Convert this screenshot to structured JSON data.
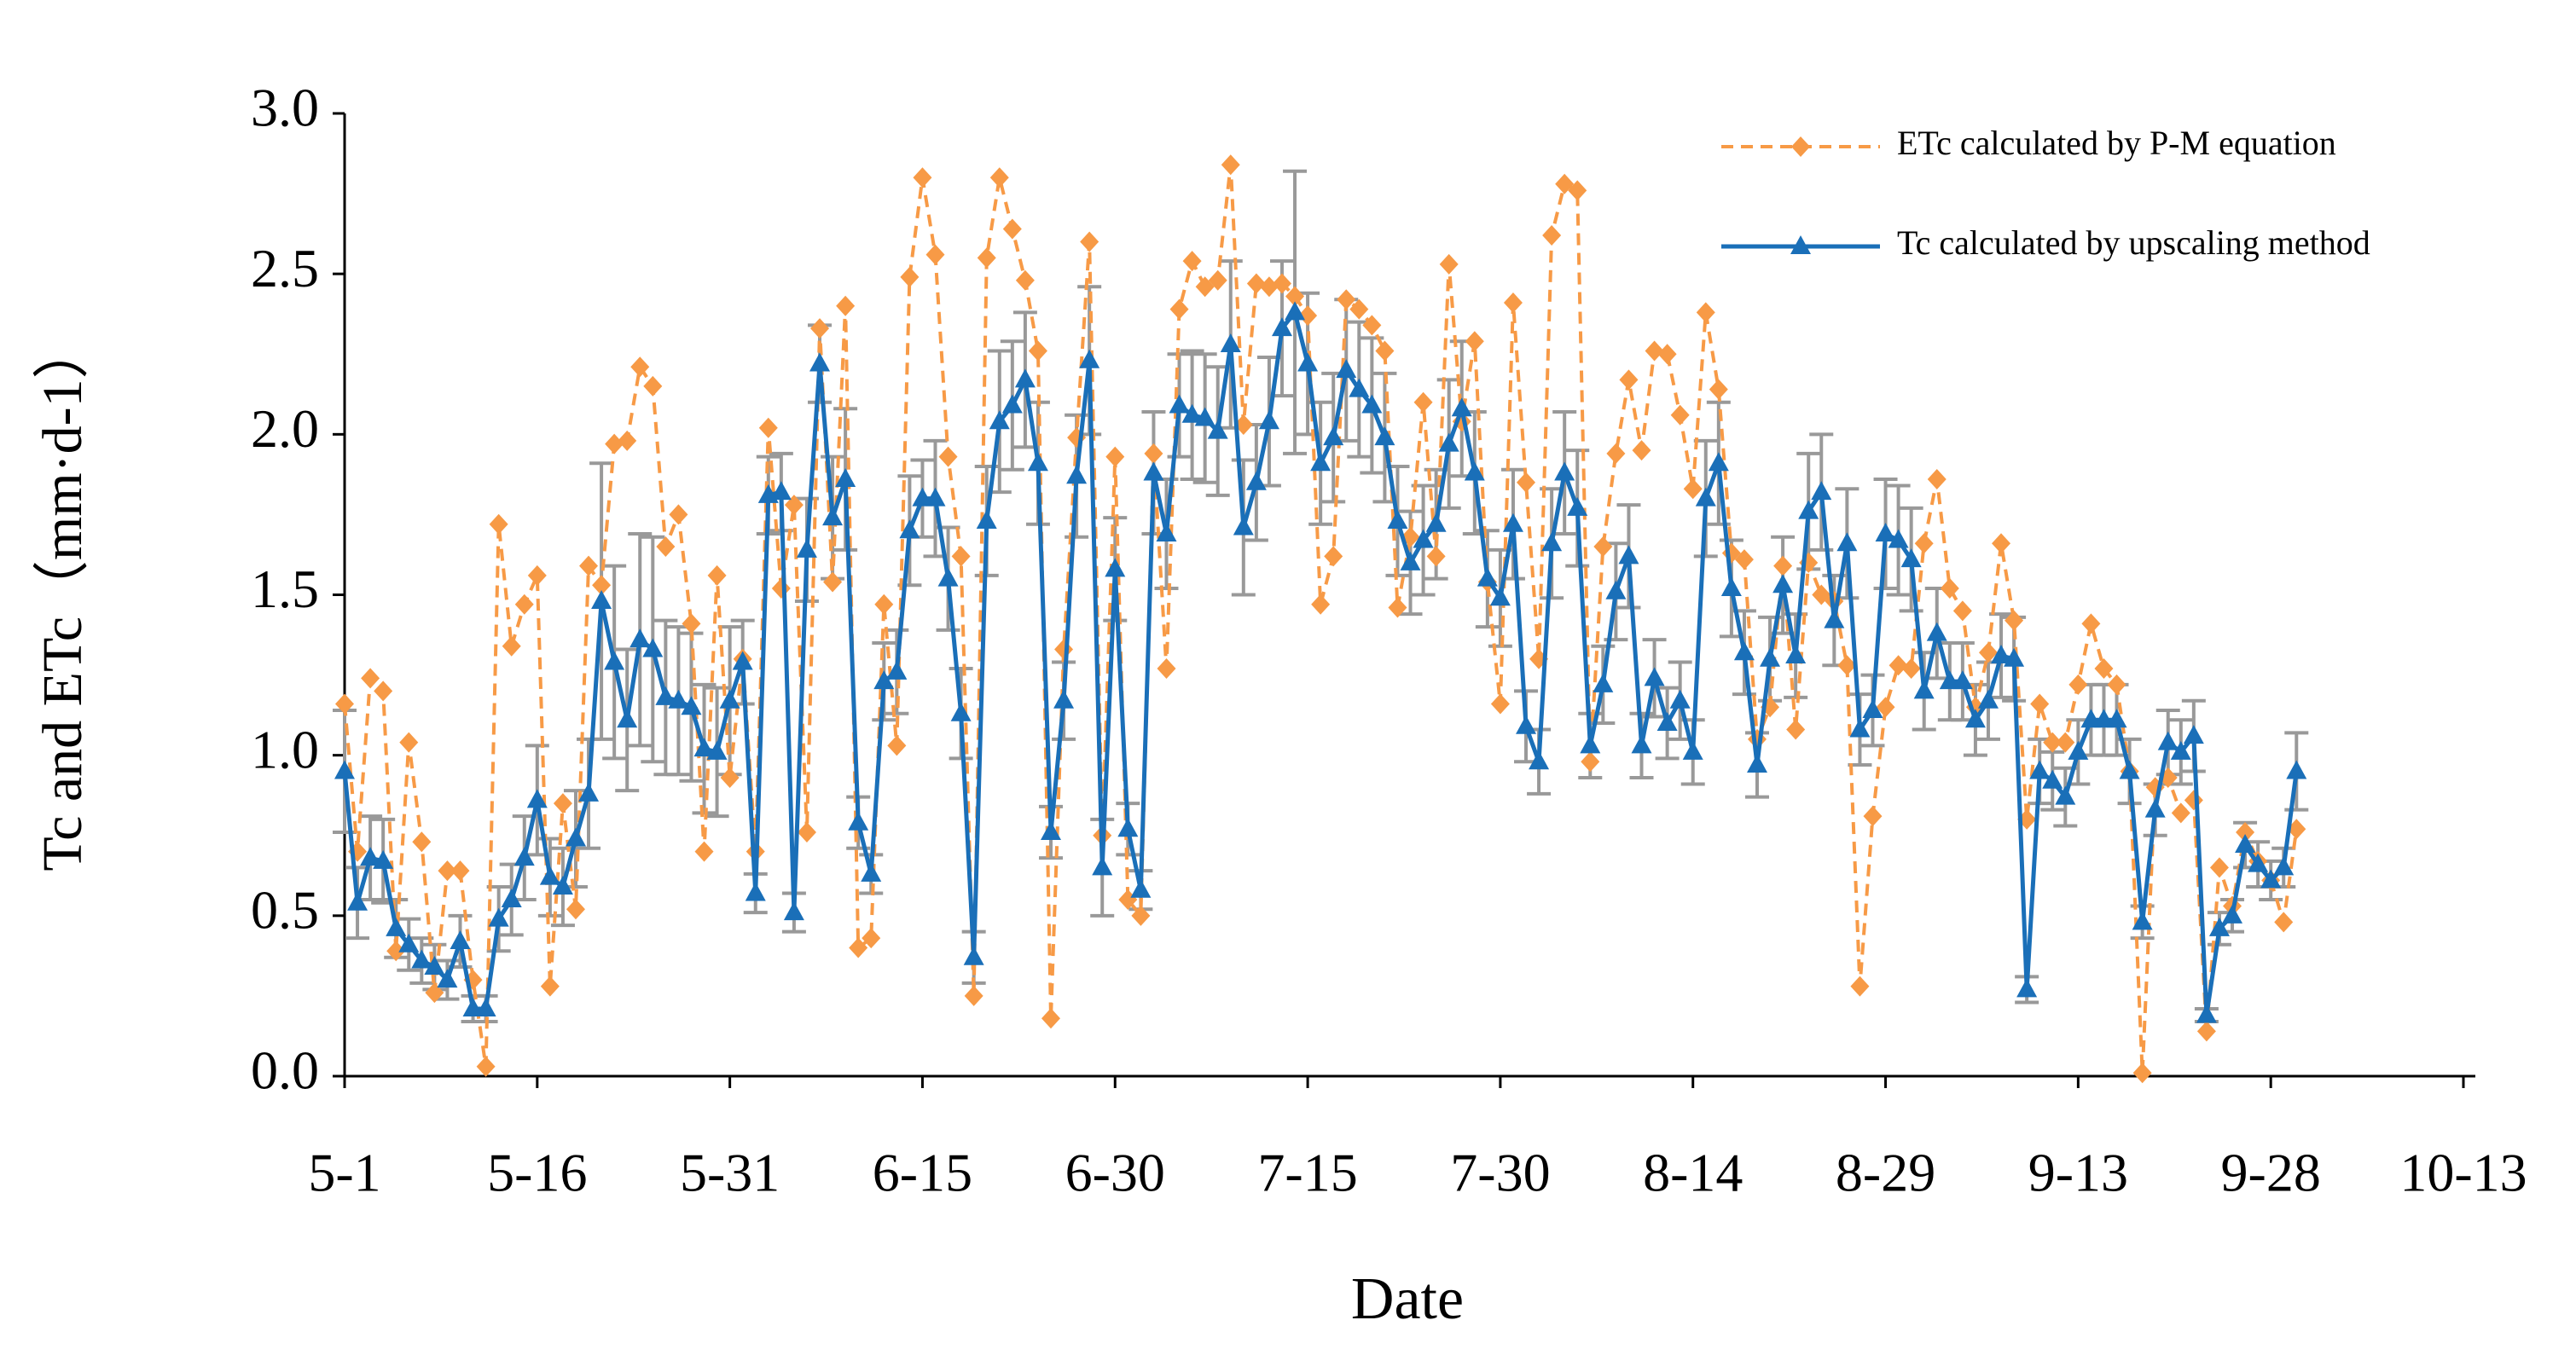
{
  "chart_data": {
    "type": "line",
    "xlabel": "Date",
    "ylabel": "Tc and ETc（mm·d-1）",
    "categories": [
      "5-1",
      null,
      null,
      null,
      null,
      null,
      null,
      null,
      null,
      null,
      null,
      null,
      null,
      null,
      null,
      "5-16",
      null,
      null,
      null,
      null,
      null,
      null,
      null,
      null,
      null,
      null,
      null,
      null,
      null,
      null,
      "5-31",
      null,
      null,
      null,
      null,
      null,
      null,
      null,
      null,
      null,
      null,
      null,
      null,
      null,
      null,
      "6-15",
      null,
      null,
      null,
      null,
      null,
      null,
      null,
      null,
      null,
      null,
      null,
      null,
      null,
      null,
      "6-30",
      null,
      null,
      null,
      null,
      null,
      null,
      null,
      null,
      null,
      null,
      null,
      null,
      null,
      null,
      "7-15",
      null,
      null,
      null,
      null,
      null,
      null,
      null,
      null,
      null,
      null,
      null,
      null,
      null,
      null,
      "7-30",
      null,
      null,
      null,
      null,
      null,
      null,
      null,
      null,
      null,
      null,
      null,
      null,
      null,
      null,
      "8-14",
      null,
      null,
      null,
      null,
      null,
      null,
      null,
      null,
      null,
      null,
      null,
      null,
      null,
      null,
      "8-29",
      null,
      null,
      null,
      null,
      null,
      null,
      null,
      null,
      null,
      null,
      null,
      null,
      null,
      null,
      "9-13",
      null,
      null,
      null,
      null,
      null,
      null,
      null,
      null,
      null,
      null,
      null,
      null,
      null,
      null,
      "9-28",
      null,
      null,
      null,
      null,
      null,
      null,
      null,
      null,
      null,
      null,
      null,
      null,
      null,
      null,
      "10-13"
    ],
    "ylim": [
      0,
      3
    ],
    "yticks": [
      {
        "value": 0,
        "label": "0.0"
      },
      0.5,
      {
        "value": 1,
        "label": "1.0"
      },
      1.5,
      {
        "value": 2,
        "label": "2.0"
      },
      2.5,
      {
        "value": 3,
        "label": "3.0"
      }
    ],
    "legend": "upper right",
    "series": [
      {
        "name": "ETc calculated  by  P-M equation",
        "color": "#f79a46",
        "style": "dashed",
        "marker": "diamond",
        "values": [
          1.16,
          0.7,
          1.24,
          1.2,
          0.39,
          1.04,
          0.73,
          0.26,
          0.64,
          0.64,
          0.3,
          0.03,
          1.72,
          1.34,
          1.47,
          1.56,
          0.28,
          0.85,
          0.52,
          1.59,
          1.53,
          1.97,
          1.98,
          2.21,
          2.15,
          1.65,
          1.75,
          1.41,
          0.7,
          1.56,
          0.93,
          1.3,
          0.7,
          2.02,
          1.52,
          1.78,
          0.76,
          2.33,
          1.54,
          2.4,
          0.4,
          0.43,
          1.47,
          1.03,
          2.49,
          2.8,
          2.56,
          1.93,
          1.62,
          0.25,
          2.55,
          2.8,
          2.64,
          2.48,
          2.26,
          0.18,
          1.33,
          1.99,
          2.6,
          0.75,
          1.93,
          0.55,
          0.5,
          1.94,
          1.27,
          2.39,
          2.54,
          2.46,
          2.48,
          2.84,
          2.03,
          2.47,
          2.46,
          2.47,
          2.43,
          2.37,
          1.47,
          1.62,
          2.42,
          2.39,
          2.34,
          2.26,
          1.46,
          1.68,
          2.1,
          1.62,
          2.53,
          2.04,
          2.29,
          1.54,
          1.16,
          2.41,
          1.85,
          1.3,
          2.62,
          2.78,
          2.76,
          0.98,
          1.65,
          1.94,
          2.17,
          1.95,
          2.26,
          2.25,
          2.06,
          1.83,
          2.38,
          2.14,
          1.63,
          1.61,
          1.05,
          1.15,
          1.59,
          1.08,
          1.6,
          1.5,
          1.48,
          1.28,
          0.28,
          0.81,
          1.15,
          1.28,
          1.27,
          1.66,
          1.86,
          1.52,
          1.45,
          1.15,
          1.32,
          1.66,
          1.42,
          0.8,
          1.16,
          1.04,
          1.04,
          1.22,
          1.41,
          1.27,
          1.22,
          0.95,
          0.01,
          0.9,
          0.93,
          0.82,
          0.86,
          0.14,
          0.65,
          0.53,
          0.76,
          0.67,
          0.61,
          0.48,
          0.77,
          null,
          null,
          null,
          null,
          null,
          null,
          null,
          null,
          null,
          null,
          null,
          null,
          null
        ]
      },
      {
        "name": "Tc calculated  by  upscaling method",
        "color": "#1a6fb8",
        "style": "solid",
        "marker": "triangle",
        "values": [
          0.95,
          0.54,
          0.68,
          0.67,
          0.46,
          0.41,
          0.36,
          0.34,
          0.3,
          0.42,
          0.21,
          0.21,
          0.49,
          0.55,
          0.68,
          0.86,
          0.62,
          0.59,
          0.74,
          0.88,
          1.48,
          1.29,
          1.11,
          1.36,
          1.33,
          1.18,
          1.17,
          1.15,
          1.02,
          1.01,
          1.17,
          1.29,
          0.57,
          1.81,
          1.82,
          0.51,
          1.64,
          2.22,
          1.74,
          1.86,
          0.79,
          0.63,
          1.23,
          1.26,
          1.7,
          1.8,
          1.8,
          1.55,
          1.13,
          0.37,
          1.73,
          2.04,
          2.09,
          2.17,
          1.91,
          0.76,
          1.17,
          1.87,
          2.23,
          0.65,
          1.58,
          0.77,
          0.58,
          1.88,
          1.69,
          2.09,
          2.06,
          2.05,
          2.01,
          2.28,
          1.71,
          1.85,
          2.04,
          2.33,
          2.38,
          2.22,
          1.91,
          1.99,
          2.2,
          2.14,
          2.09,
          1.99,
          1.73,
          1.6,
          1.67,
          1.72,
          1.97,
          2.08,
          1.88,
          1.55,
          1.49,
          1.72,
          1.09,
          0.98,
          1.66,
          1.88,
          1.77,
          1.03,
          1.22,
          1.51,
          1.62,
          1.03,
          1.24,
          1.1,
          1.17,
          1.01,
          1.8,
          1.91,
          1.52,
          1.32,
          0.97,
          1.3,
          1.53,
          1.31,
          1.76,
          1.82,
          1.42,
          1.66,
          1.08,
          1.14,
          1.69,
          1.67,
          1.61,
          1.2,
          1.38,
          1.23,
          1.23,
          1.11,
          1.17,
          1.31,
          1.3,
          0.27,
          0.95,
          0.92,
          0.87,
          1.01,
          1.11,
          1.11,
          1.11,
          0.95,
          0.48,
          0.83,
          1.04,
          1.01,
          1.06,
          0.19,
          0.46,
          0.5,
          0.72,
          0.66,
          0.61,
          0.65,
          0.95,
          null,
          null,
          null,
          null,
          null,
          null,
          null,
          null,
          null,
          null,
          null,
          null,
          null
        ],
        "error_color": "#999999",
        "errors": [
          0.19,
          0.11,
          0.13,
          0.13,
          0.09,
          0.08,
          0.07,
          0.07,
          0.06,
          0.08,
          0.04,
          0.04,
          0.1,
          0.11,
          0.13,
          0.17,
          0.12,
          0.12,
          0.15,
          0.17,
          0.43,
          0.3,
          0.22,
          0.33,
          0.35,
          0.24,
          0.23,
          0.23,
          0.2,
          0.2,
          0.23,
          0.13,
          0.06,
          0.12,
          0.12,
          0.06,
          0.16,
          0.12,
          0.19,
          0.22,
          0.08,
          0.06,
          0.12,
          0.13,
          0.17,
          0.12,
          0.18,
          0.16,
          0.14,
          0.08,
          0.17,
          0.22,
          0.2,
          0.21,
          0.19,
          0.08,
          0.12,
          0.19,
          0.23,
          0.15,
          0.16,
          0.08,
          0.06,
          0.19,
          0.17,
          0.16,
          0.2,
          0.2,
          0.2,
          0.26,
          0.21,
          0.18,
          0.2,
          0.21,
          0.44,
          0.22,
          0.19,
          0.2,
          0.22,
          0.21,
          0.21,
          0.2,
          0.17,
          0.16,
          0.17,
          0.17,
          0.2,
          0.21,
          0.19,
          0.15,
          0.15,
          0.17,
          0.11,
          0.1,
          0.17,
          0.19,
          0.18,
          0.1,
          0.12,
          0.15,
          0.16,
          0.1,
          0.12,
          0.11,
          0.12,
          0.1,
          0.18,
          0.19,
          0.15,
          0.13,
          0.1,
          0.13,
          0.15,
          0.13,
          0.18,
          0.18,
          0.14,
          0.17,
          0.11,
          0.11,
          0.17,
          0.17,
          0.16,
          0.12,
          0.14,
          0.12,
          0.12,
          0.11,
          0.12,
          0.13,
          0.13,
          0.04,
          0.1,
          0.09,
          0.09,
          0.1,
          0.11,
          0.11,
          0.11,
          0.1,
          0.05,
          0.08,
          0.1,
          0.1,
          0.11,
          0.02,
          0.05,
          0.05,
          0.07,
          0.07,
          0.06,
          0.06,
          0.12,
          null,
          null,
          null,
          null,
          null,
          null,
          null,
          null,
          null,
          null,
          null,
          null,
          null
        ]
      }
    ]
  }
}
